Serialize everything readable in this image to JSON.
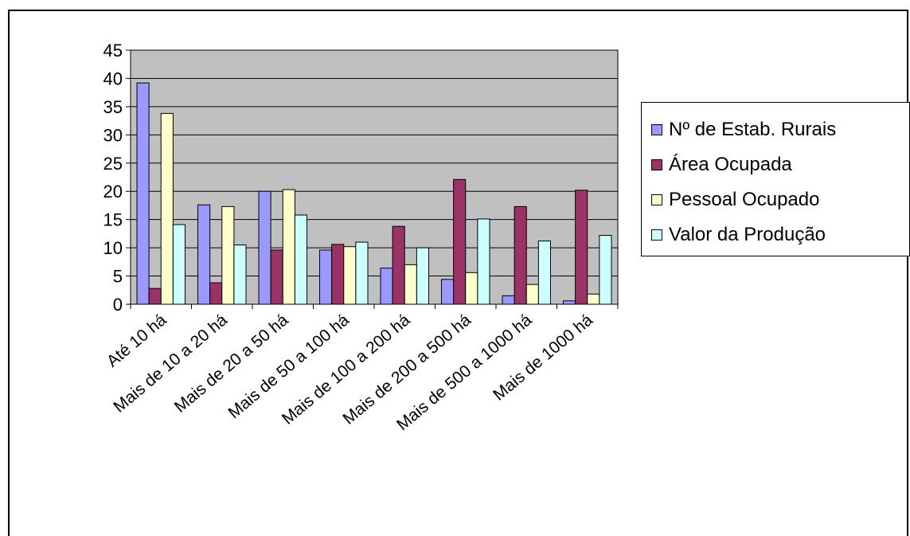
{
  "chart_data": {
    "type": "bar",
    "title": "",
    "xlabel": "",
    "ylabel": "",
    "categories": [
      "Até 10 há",
      "Mais de 10 a 20 há",
      "Mais de 20 a 50 há",
      "Mais de 50 a 100 há",
      "Mais de 100 a 200 há",
      "Mais de 200 a 500 há",
      "Mais de 500 a 1000 há",
      "Mais de 1000 há"
    ],
    "series": [
      {
        "name": "Nº de Estab. Rurais",
        "color": "#9999ff",
        "values": [
          39.2,
          17.6,
          20.0,
          9.6,
          6.4,
          4.4,
          1.5,
          0.6
        ]
      },
      {
        "name": "Área Ocupada",
        "color": "#993366",
        "values": [
          2.8,
          3.8,
          9.6,
          10.6,
          13.8,
          22.1,
          17.3,
          20.2
        ]
      },
      {
        "name": "Pessoal Ocupado",
        "color": "#ffffcc",
        "values": [
          33.8,
          17.3,
          20.3,
          10.2,
          7.0,
          5.6,
          3.5,
          1.8
        ]
      },
      {
        "name": "Valor da Produção",
        "color": "#ccffff",
        "values": [
          14.1,
          10.5,
          15.8,
          11.0,
          10.0,
          15.1,
          11.2,
          12.2
        ]
      }
    ],
    "ylim": [
      0,
      45
    ],
    "yticks": [
      0,
      5,
      10,
      15,
      20,
      25,
      30,
      35,
      40,
      45
    ],
    "grid": true,
    "plot_background": "#c0c0c0",
    "legend_position": "right"
  }
}
